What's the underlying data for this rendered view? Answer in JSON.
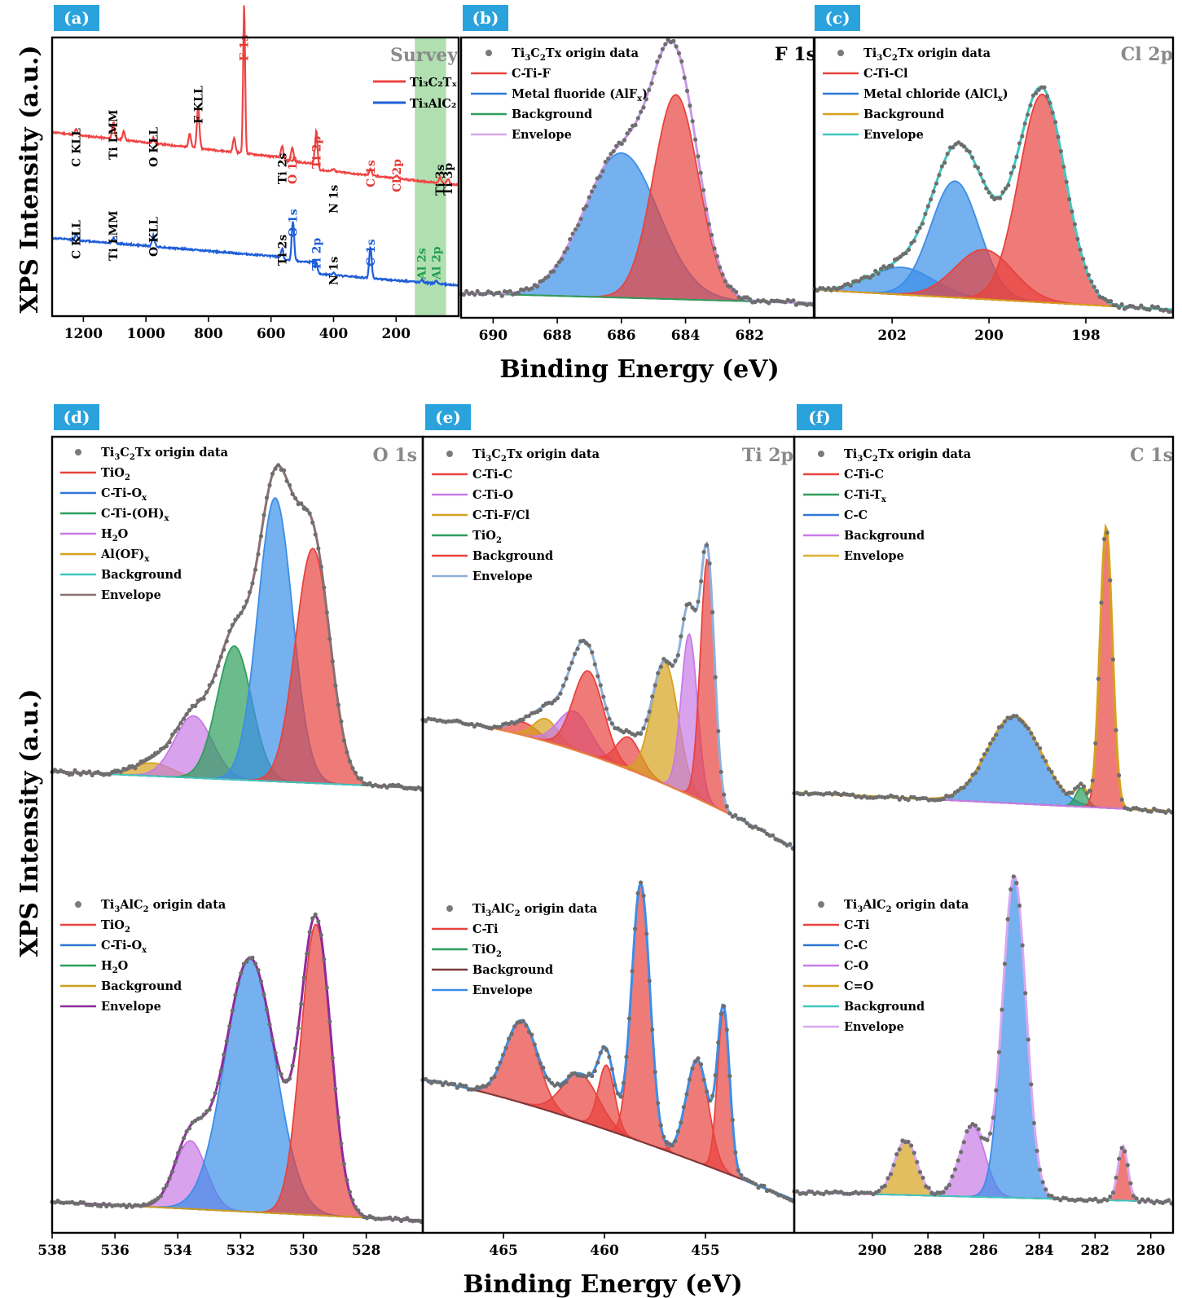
{
  "y_axis_label": "XPS Intensity (a.u.)",
  "x_axis_label": "Binding Energy (eV)",
  "colors": {
    "label_bg": "#2aa3dc",
    "ti3c2tx": "#ef4444",
    "ti3alc2": "#1e5ed8"
  },
  "chart_data": [
    {
      "panel": "(a)",
      "type": "line",
      "title": "Survey",
      "xlim": [
        1300,
        0
      ],
      "xticks": [
        1200,
        1000,
        800,
        600,
        400,
        200
      ],
      "legend": [
        "Ti₃C₂Tₓ",
        "Ti₃AlC₂"
      ],
      "series": [
        {
          "name": "Ti₃C₂Tₓ",
          "color": "#ef4444",
          "peaks": [
            {
              "x": 1223,
              "h": 0.02
            },
            {
              "x": 1104,
              "h": 0.06
            },
            {
              "x": 1071,
              "h": 0.03
            },
            {
              "x": 976,
              "h": 0.02
            },
            {
              "x": 860,
              "h": 0.05
            },
            {
              "x": 833,
              "h": 0.15
            },
            {
              "x": 718,
              "h": 0.05
            },
            {
              "x": 686,
              "h": 0.53
            },
            {
              "x": 564,
              "h": 0.04
            },
            {
              "x": 532,
              "h": 0.05
            },
            {
              "x": 455,
              "h": 0.15
            },
            {
              "x": 400,
              "h": 0.01
            },
            {
              "x": 282,
              "h": 0.025
            },
            {
              "x": 198,
              "h": 0.01
            },
            {
              "x": 60,
              "h": 0.02
            },
            {
              "x": 34,
              "h": 0.02
            }
          ]
        },
        {
          "name": "Ti₃AlC₂",
          "color": "#1e5ed8",
          "peaks": [
            {
              "x": 1223,
              "h": 0.02
            },
            {
              "x": 1104,
              "h": 0.02
            },
            {
              "x": 976,
              "h": 0.04
            },
            {
              "x": 564,
              "h": 0.03
            },
            {
              "x": 530,
              "h": 0.14
            },
            {
              "x": 455,
              "h": 0.05
            },
            {
              "x": 400,
              "h": 0.01
            },
            {
              "x": 282,
              "h": 0.11
            },
            {
              "x": 118,
              "h": 0.01
            },
            {
              "x": 72,
              "h": 0.01
            }
          ]
        }
      ],
      "annotations": [
        {
          "text": "C KLL",
          "x": 1223,
          "color": "#000"
        },
        {
          "text": "Ti LMM",
          "x": 1104,
          "color": "#000"
        },
        {
          "text": "O KLL",
          "x": 976,
          "color": "#000"
        },
        {
          "text": "F KLL",
          "x": 833,
          "color": "#000"
        },
        {
          "text": "F 1s",
          "x": 686,
          "color": "#e53935"
        },
        {
          "text": "Ti 2s",
          "x": 564,
          "color": "#000"
        },
        {
          "text": "O 1s",
          "x": 532,
          "color": "#e53935"
        },
        {
          "text": "Ti 2p",
          "x": 455,
          "color": "#e53935"
        },
        {
          "text": "N 1s",
          "x": 400,
          "color": "#000"
        },
        {
          "text": "C 1s",
          "x": 282,
          "color": "#e53935"
        },
        {
          "text": "Cl 2p",
          "x": 198,
          "color": "#e53935"
        },
        {
          "text": "Ti 3s",
          "x": 60,
          "color": "#000"
        },
        {
          "text": "Ti 3p",
          "x": 34,
          "color": "#000"
        },
        {
          "text": "C KLL",
          "x": 1223,
          "color": "#000"
        },
        {
          "text": "Ti LMM",
          "x": 1104,
          "color": "#000"
        },
        {
          "text": "O KLL",
          "x": 976,
          "color": "#000"
        },
        {
          "text": "Ti 2s",
          "x": 564,
          "color": "#000"
        },
        {
          "text": "O 1s",
          "x": 530,
          "color": "#1e5ed8"
        },
        {
          "text": "Ti 2p",
          "x": 455,
          "color": "#1e5ed8"
        },
        {
          "text": "N 1s",
          "x": 400,
          "color": "#000"
        },
        {
          "text": "C 1s",
          "x": 282,
          "color": "#1e5ed8"
        },
        {
          "text": "Al 2s",
          "x": 118,
          "color": "#1e9e4e"
        },
        {
          "text": "Al 2p",
          "x": 72,
          "color": "#1e9e4e"
        }
      ],
      "highlight_band": [
        140,
        40
      ]
    },
    {
      "panel": "(b)",
      "type": "line",
      "title": "F 1s",
      "xlim": [
        691,
        680
      ],
      "xticks": [
        690,
        688,
        686,
        684,
        682
      ],
      "legend": [
        "Ti3C2Tx origin data",
        "C-Ti-F",
        "Metal fluoride (AlFx)",
        "Background",
        "Envelope"
      ],
      "peaks": [
        {
          "name": "Metal fluoride (AlFx)",
          "c": 686.0,
          "s": 1.15,
          "a": 0.58
        },
        {
          "name": "C-Ti-F",
          "c": 684.3,
          "s": 0.7,
          "a": 0.82
        }
      ],
      "background": [
        0.03,
        0.02
      ]
    },
    {
      "panel": "(c)",
      "type": "line",
      "title": "Cl 2p",
      "xlim": [
        203.6,
        196.2
      ],
      "xticks": [
        202,
        200,
        198
      ],
      "legend": [
        "Ti3C2Tx origin data",
        "C-Ti-Cl",
        "Metal chloride (AlClx)",
        "Background",
        "Envelope"
      ],
      "peaks": [
        {
          "name": "Metal chloride (AlClx)",
          "c": 201.8,
          "s": 0.65,
          "a": 0.11
        },
        {
          "name": "Metal chloride (AlClx)",
          "c": 200.7,
          "s": 0.5,
          "a": 0.47
        },
        {
          "name": "C-Ti-Cl",
          "c": 200.1,
          "s": 0.6,
          "a": 0.2
        },
        {
          "name": "C-Ti-Cl",
          "c": 198.9,
          "s": 0.48,
          "a": 0.84
        }
      ],
      "background": [
        0.08,
        0.05
      ]
    },
    {
      "panel": "(d)",
      "type": "line",
      "title": "O 1s",
      "xlim": [
        538,
        526.2
      ],
      "xticks": [
        538,
        536,
        534,
        532,
        530,
        528
      ],
      "legend_top": [
        "Ti3C2Tx origin data",
        "TiO2",
        "C-Ti-Ox",
        "C-Ti-(OH)x",
        "H2O",
        "Al(OF)x",
        "Background",
        "Envelope"
      ],
      "peaks_top": [
        {
          "name": "Al(OF)x",
          "c": 534.8,
          "s": 0.6,
          "a": 0.04
        },
        {
          "name": "H2O",
          "c": 533.5,
          "s": 0.6,
          "a": 0.19
        },
        {
          "name": "C-Ti-(OH)x",
          "c": 532.2,
          "s": 0.55,
          "a": 0.41
        },
        {
          "name": "C-Ti-Ox",
          "c": 530.9,
          "s": 0.55,
          "a": 0.87
        },
        {
          "name": "TiO2",
          "c": 529.7,
          "s": 0.55,
          "a": 0.72
        }
      ],
      "legend_bottom": [
        "Ti3AlC2 origin data",
        "TiO2",
        "C-Ti-Ox",
        "H2O",
        "Background",
        "Envelope"
      ],
      "peaks_bottom": [
        {
          "name": "H2O",
          "c": 533.6,
          "s": 0.5,
          "a": 0.22
        },
        {
          "name": "C-Ti-Ox",
          "c": 531.7,
          "s": 0.8,
          "a": 0.82
        },
        {
          "name": "TiO2",
          "c": 529.6,
          "s": 0.48,
          "a": 0.94
        }
      ]
    },
    {
      "panel": "(e)",
      "type": "line",
      "title": "Ti 2p",
      "xlim": [
        469,
        450.6
      ],
      "xticks": [
        465,
        460,
        455
      ],
      "legend_top": [
        "Ti3C2Tx origin data",
        "C-Ti-C",
        "C-Ti-O",
        "C-Ti-F/Cl",
        "TiO2",
        "Background",
        "Envelope"
      ],
      "peaks_top": [
        {
          "name": "TiO2",
          "c": 464.0,
          "s": 0.7,
          "a": 0.04
        },
        {
          "name": "C-Ti-F/Cl",
          "c": 462.9,
          "s": 0.6,
          "a": 0.07
        },
        {
          "name": "C-Ti-O",
          "c": 461.5,
          "s": 0.8,
          "a": 0.12
        },
        {
          "name": "C-Ti-C",
          "c": 460.8,
          "s": 0.75,
          "a": 0.26
        },
        {
          "name": "TiO2",
          "c": 458.8,
          "s": 0.6,
          "a": 0.1
        },
        {
          "name": "C-Ti-F/Cl",
          "c": 457.0,
          "s": 0.65,
          "a": 0.38
        },
        {
          "name": "C-Ti-O",
          "c": 455.8,
          "s": 0.4,
          "a": 0.5
        },
        {
          "name": "C-Ti-C",
          "c": 454.9,
          "s": 0.35,
          "a": 0.76
        }
      ],
      "legend_bottom": [
        "Ti3AlC2 origin data",
        "C-Ti",
        "TiO2",
        "Background",
        "Envelope"
      ],
      "peaks_bottom": [
        {
          "name": "TiO2",
          "c": 464.1,
          "s": 0.8,
          "a": 0.28
        },
        {
          "name": "C-Ti",
          "c": 461.2,
          "s": 0.9,
          "a": 0.16
        },
        {
          "name": "C-Ti",
          "c": 459.9,
          "s": 0.4,
          "a": 0.22
        },
        {
          "name": "TiO2",
          "c": 458.2,
          "s": 0.45,
          "a": 0.88
        },
        {
          "name": "C-Ti",
          "c": 455.4,
          "s": 0.55,
          "a": 0.35
        },
        {
          "name": "C-Ti",
          "c": 454.1,
          "s": 0.3,
          "a": 0.55
        }
      ]
    },
    {
      "panel": "(f)",
      "type": "line",
      "title": "C 1s",
      "xlim": [
        292.8,
        279.2
      ],
      "xticks": [
        290,
        288,
        286,
        284,
        282,
        280
      ],
      "legend_top": [
        "Ti3C2Tx origin data",
        "C-Ti-C",
        "C-Ti-Tx",
        "C-C",
        "Background",
        "Envelope"
      ],
      "peaks_top": [
        {
          "name": "C-C",
          "c": 284.9,
          "s": 0.95,
          "a": 0.28
        },
        {
          "name": "C-Ti-Tx",
          "c": 282.5,
          "s": 0.2,
          "a": 0.06
        },
        {
          "name": "C-Ti-C",
          "c": 281.6,
          "s": 0.22,
          "a": 0.9
        }
      ],
      "legend_bottom": [
        "Ti3AlC2 origin data",
        "C-Ti",
        "C-C",
        "C-O",
        "C=O",
        "Background",
        "Envelope"
      ],
      "peaks_bottom": [
        {
          "name": "C=O",
          "c": 288.8,
          "s": 0.4,
          "a": 0.17
        },
        {
          "name": "C-O",
          "c": 286.4,
          "s": 0.45,
          "a": 0.22
        },
        {
          "name": "C-C",
          "c": 284.9,
          "s": 0.42,
          "a": 1.0
        },
        {
          "name": "C-Ti",
          "c": 281.0,
          "s": 0.18,
          "a": 0.17
        }
      ]
    }
  ]
}
